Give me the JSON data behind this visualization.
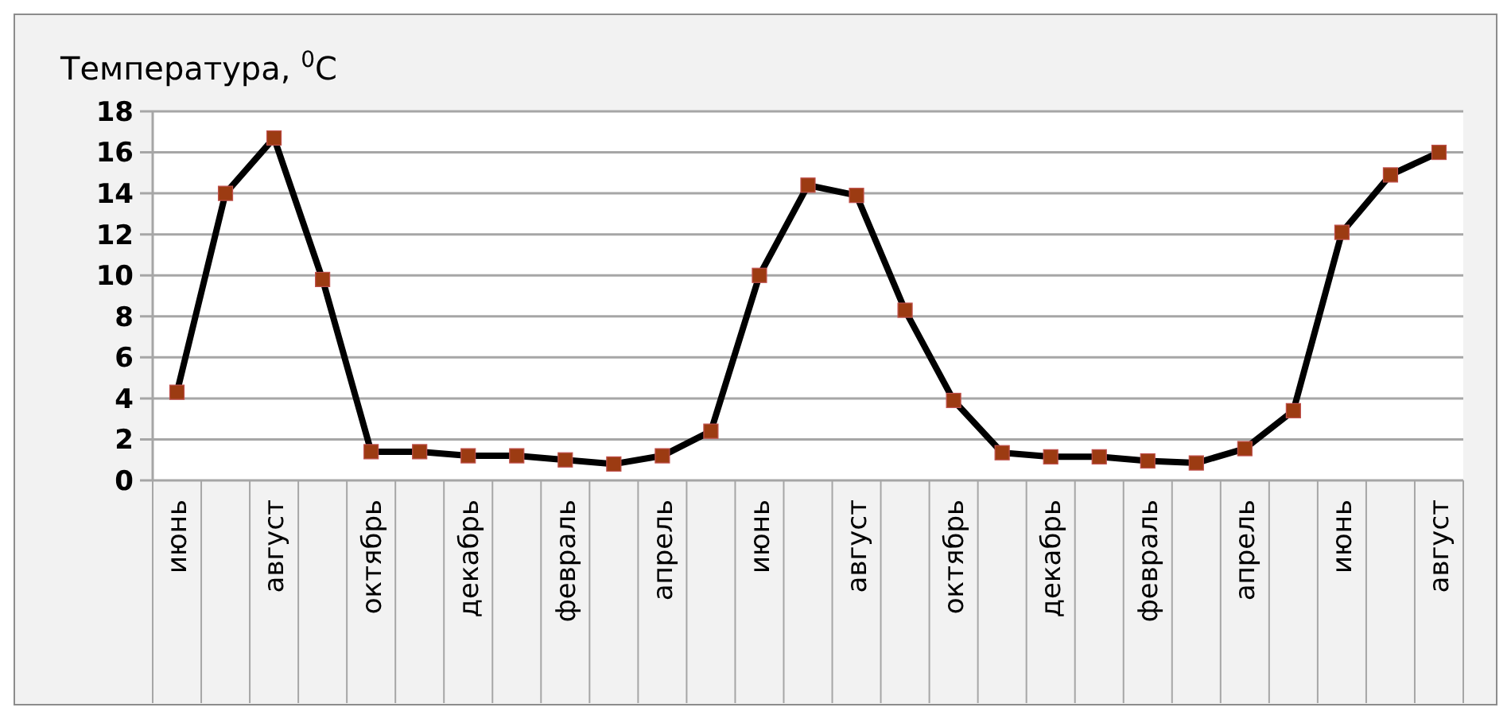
{
  "chart_data": {
    "type": "line",
    "title": "Температура, $^{0}$С",
    "categories": [
      "июнь",
      null,
      "август",
      null,
      "октябрь",
      null,
      "декабрь",
      null,
      "февраль",
      null,
      "апрель",
      null,
      "июнь",
      null,
      "август",
      null,
      "октябрь",
      null,
      "декабрь",
      null,
      "февраль",
      null,
      "апрель",
      null,
      "июнь",
      null,
      "август"
    ],
    "series": [
      {
        "color": "#000000",
        "values": [
          4.3,
          14,
          16.7,
          9.8,
          1.4,
          1.4,
          1.2,
          1.2,
          1.0,
          0.8,
          1.2,
          2.4,
          10,
          14.4,
          13.9,
          8.3,
          3.9,
          1.35,
          1.15,
          1.15,
          0.95,
          0.85,
          1.55,
          3.4,
          12.1,
          14.9,
          16.0
        ]
      }
    ],
    "ylim": [
      0,
      18
    ],
    "yticks": [
      0,
      2,
      4,
      6,
      8,
      10,
      12,
      14,
      16,
      18
    ],
    "grid": "y",
    "marker": "square",
    "line_style": "solid"
  }
}
